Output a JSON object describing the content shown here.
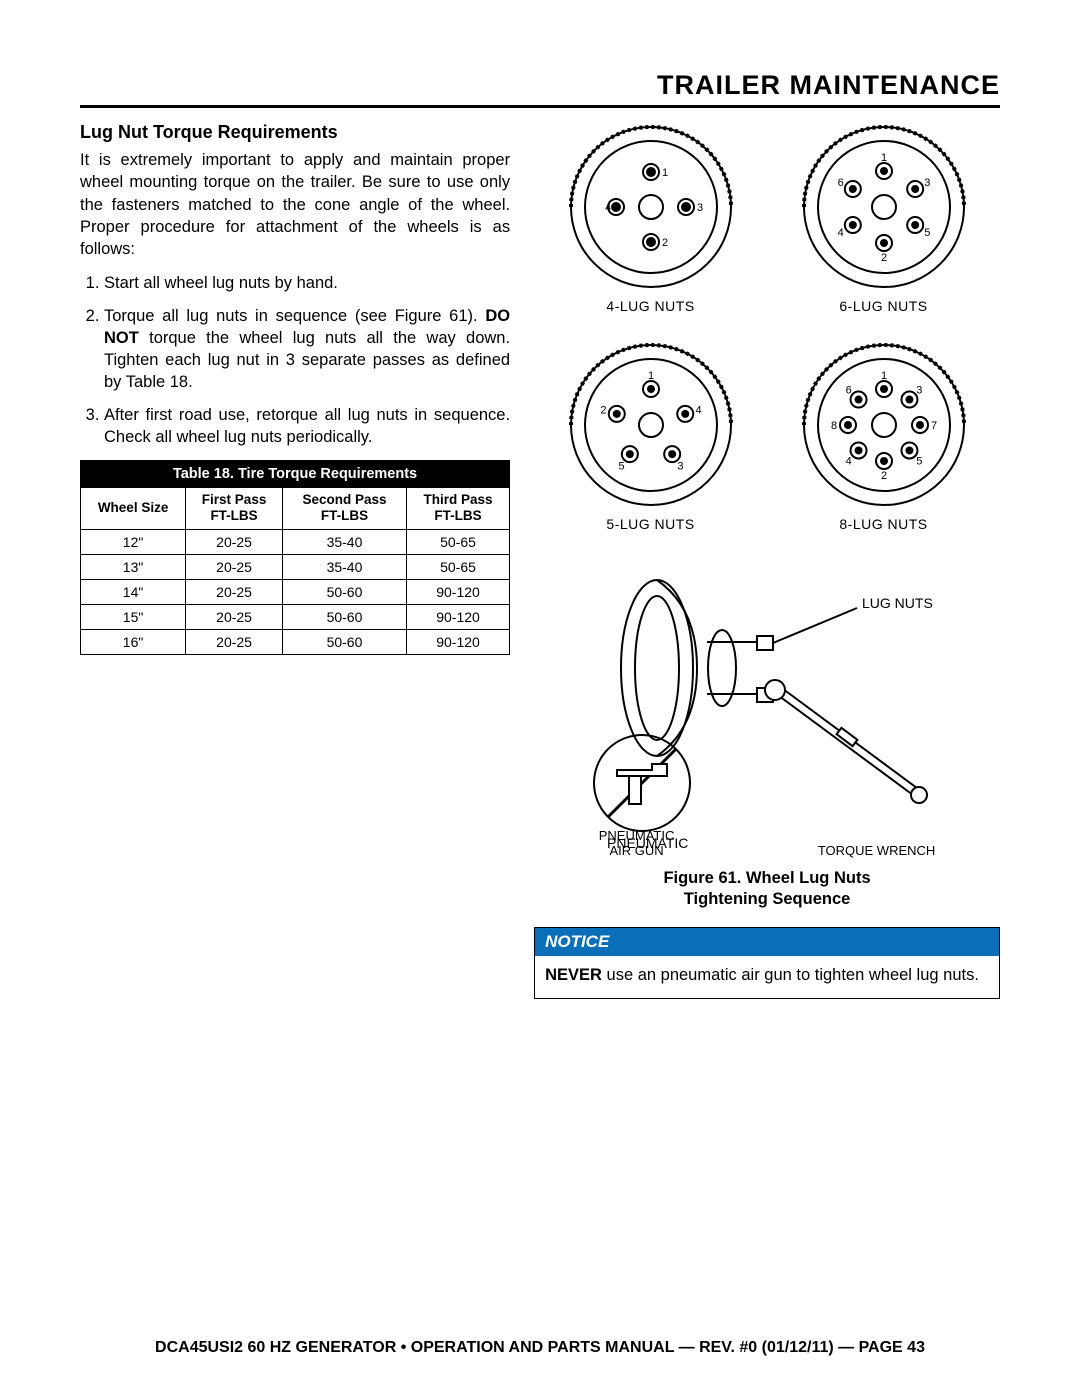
{
  "header": {
    "title": "TRAILER MAINTENANCE"
  },
  "section": {
    "title": "Lug Nut Torque Requirements",
    "intro": "It is extremely important to apply and maintain proper wheel mounting torque on the trailer. Be sure to use only the fasteners matched to the cone angle of the wheel. Proper procedure for attachment of the wheels is as follows:",
    "steps": [
      "Start all wheel lug nuts by hand.",
      "Torque all lug nuts in sequence (see Figure 61). DO NOT torque the wheel lug nuts all the way down. Tighten each lug nut in 3 separate passes as defined by Table 18.",
      "After first road use, retorque all lug nuts in sequence. Check all wheel lug nuts periodically."
    ],
    "step2_pre": "Torque all lug nuts in sequence (see Figure 61). ",
    "step2_bold": "DO NOT",
    "step2_post": " torque the wheel lug nuts all the way down. Tighten each lug nut in 3 separate passes as defined by Table 18."
  },
  "table": {
    "title": "Table 18. Tire Torque Requirements",
    "columns": [
      "Wheel Size",
      "First Pass FT-LBS",
      "Second Pass FT-LBS",
      "Third Pass FT-LBS"
    ],
    "col0": "Wheel Size",
    "col1a": "First Pass",
    "col1b": "FT-LBS",
    "col2a": "Second Pass",
    "col2b": "FT-LBS",
    "col3a": "Third Pass",
    "col3b": "FT-LBS",
    "rows": [
      [
        "12\"",
        "20-25",
        "35-40",
        "50-65"
      ],
      [
        "13\"",
        "20-25",
        "35-40",
        "50-65"
      ],
      [
        "14\"",
        "20-25",
        "50-60",
        "90-120"
      ],
      [
        "15\"",
        "20-25",
        "50-60",
        "90-120"
      ],
      [
        "16\"",
        "20-25",
        "50-60",
        "90-120"
      ]
    ],
    "border_color": "#000000",
    "header_bg": "#000000",
    "header_fg": "#ffffff"
  },
  "figure": {
    "wheel_labels": {
      "four": "4-LUG NUTS",
      "five": "5-LUG NUTS",
      "six": "6-LUG NUTS",
      "eight": "8-LUG NUTS"
    },
    "lug_nuts_label": "LUG NUTS",
    "pneumatic_label_1": "PNEUMATIC",
    "pneumatic_label_2": "AIR GUN",
    "torque_wrench_label": "TORQUE WRENCH",
    "caption_1": "Figure 61. Wheel Lug Nuts",
    "caption_2": "Tightening Sequence",
    "stroke_color": "#000000",
    "fill_color": "#ffffff",
    "lug_seq_4": [
      "1",
      "2",
      "3",
      "4"
    ],
    "lug_seq_5": [
      "1",
      "2",
      "3",
      "4",
      "5"
    ],
    "lug_seq_6": [
      "1",
      "2",
      "3",
      "4",
      "5",
      "6"
    ],
    "lug_seq_8": [
      "1",
      "2",
      "3",
      "4",
      "5",
      "6",
      "7",
      "8"
    ]
  },
  "notice": {
    "header": "NOTICE",
    "bold": "NEVER",
    "body_rest": " use an pneumatic air gun to tighten wheel lug nuts.",
    "header_bg": "#0a6fb8",
    "header_fg": "#ffffff"
  },
  "footer": {
    "text": "DCA45USI2 60 HZ GENERATOR • OPERATION AND PARTS MANUAL — REV. #0 (01/12/11) — PAGE 43"
  }
}
